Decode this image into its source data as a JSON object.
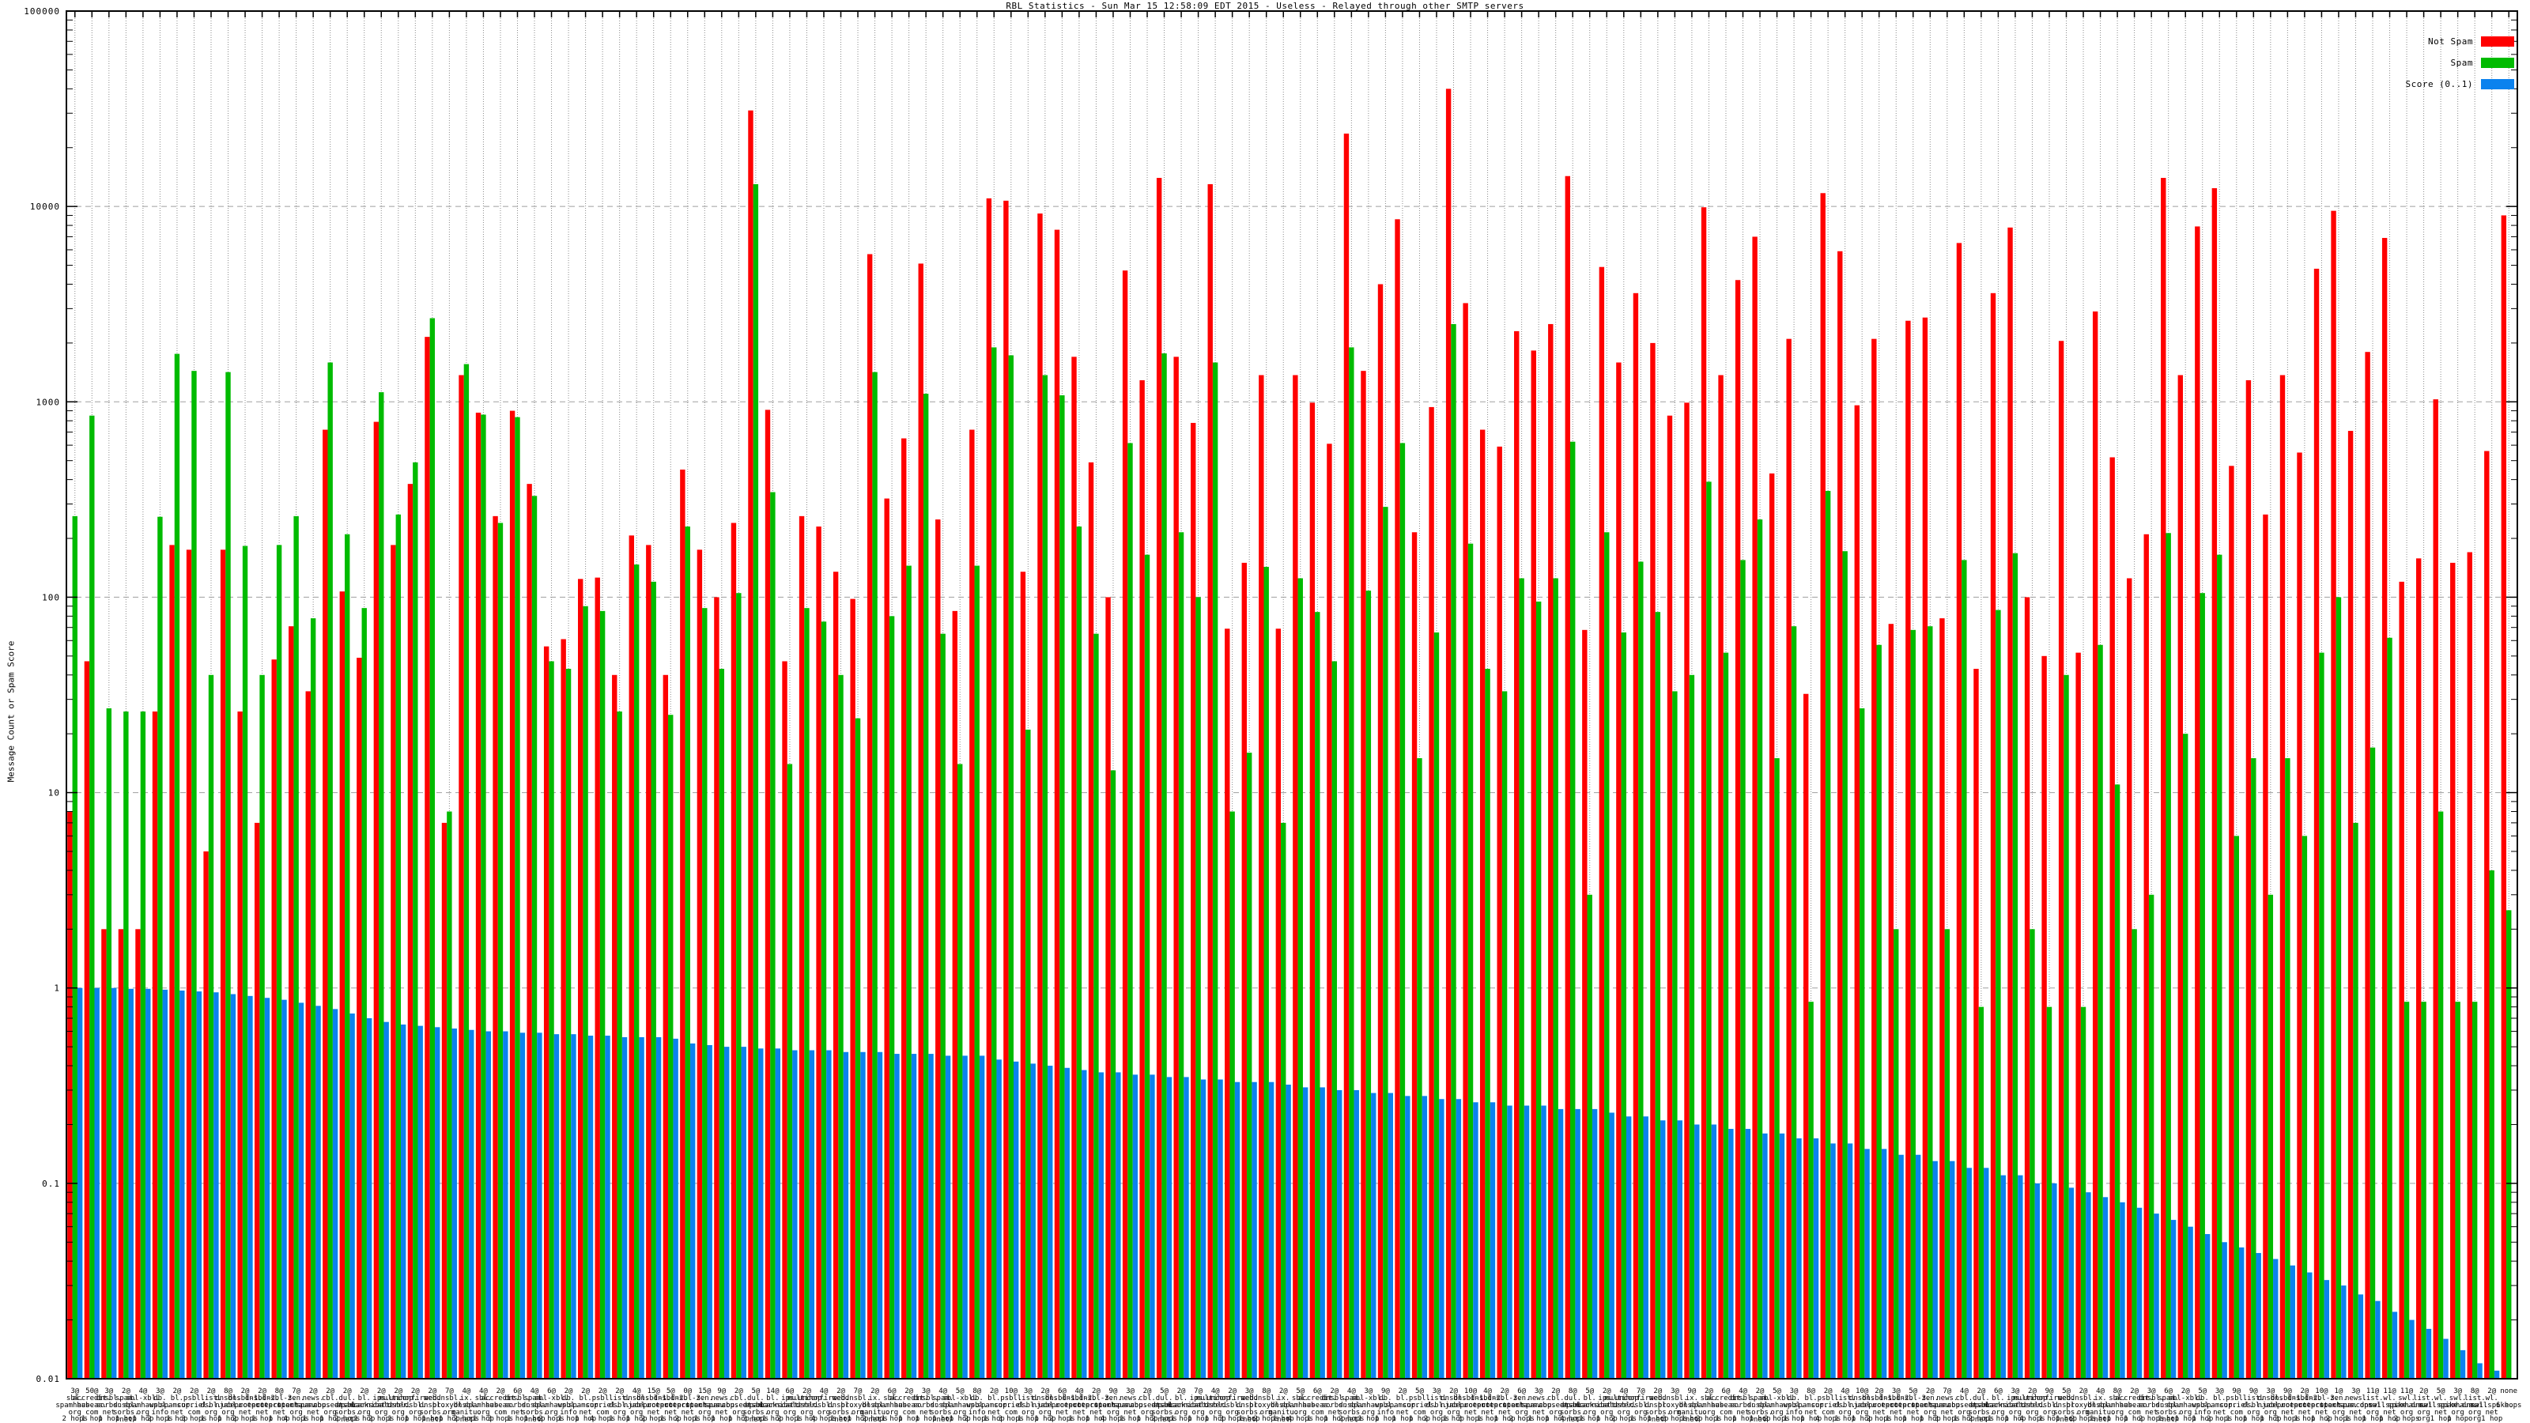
{
  "window": {
    "kind": "gnuplot-style statistics chart image"
  },
  "chart_data": {
    "type": "bar",
    "title": "RBL Statistics - Sun Mar 15 12:58:09 EDT 2015 - Useless - Relayed through other SMTP servers",
    "ylabel": "Message Count or Spam Score",
    "xlabel": "",
    "yscale": "log",
    "ylim": [
      0.01,
      100000
    ],
    "y_ticks": [
      "100000",
      "10000",
      "1000",
      "100",
      "10",
      "1",
      "0.1",
      "0.01"
    ],
    "grid": true,
    "legend_position": "top-right",
    "legend": [
      {
        "name": "Not Spam",
        "color": "#ff0000"
      },
      {
        "name": "Spam",
        "color": "#00bb00"
      },
      {
        "name": "Score (0..1)",
        "color": "#0b82ee"
      }
    ],
    "axis_color": "#000000",
    "vgrid_color": "#8a8a8a",
    "hgrid_color": "#9f9f9f",
    "group_fields": [
      "weight_tag",
      "rbl_name",
      "hops",
      "not_spam",
      "spam",
      "score"
    ],
    "groups": [
      [
        "3@",
        "sbl.spamhaus.org",
        "2 hops",
        8,
        260,
        1.0
      ],
      [
        "50@",
        "accredit.habeas.com",
        "1 hop",
        47,
        850,
        1.0
      ],
      [
        "3@",
        "dnsbl.sorbs.net",
        "1 hop",
        2,
        27,
        1.0
      ],
      [
        "2@",
        "spam.dnsbl.sorbs.net",
        "1 hop",
        2,
        26,
        0.99
      ],
      [
        "4@",
        "sbl-xbl.spamhaus.org",
        "1 hop",
        2,
        26,
        0.99
      ],
      [
        "3@",
        "db.wpbl.info",
        "2 hops",
        26,
        258,
        0.98
      ],
      [
        "2@",
        "bl.spamcop.net",
        "1 hop",
        185,
        1760,
        0.97
      ],
      [
        "2@",
        "psbl.surriel.com",
        "3 hops",
        175,
        1440,
        0.96
      ],
      [
        "2@",
        "list.dsbl.org",
        "1 hop",
        5,
        40,
        0.95
      ],
      [
        "8@",
        "dnsbl.njabl.org",
        "1 hop",
        175,
        1420,
        0.93
      ],
      [
        "2@",
        "dnsbl-1.uceprotect.net",
        "2 hops",
        26,
        183,
        0.91
      ],
      [
        "2@",
        "dnsbl-2.uceprotect.net",
        "1 hop",
        7,
        40,
        0.89
      ],
      [
        "8@",
        "dnsbl-3.uceprotect.net",
        "1 hop",
        48,
        185,
        0.87
      ],
      [
        "7@",
        "zen.spamhaus.org",
        "4 hops",
        71,
        260,
        0.84
      ],
      [
        "2@",
        "news.spamcop.net",
        "1 hop",
        33,
        78,
        0.81
      ],
      [
        "2@",
        "cbl.abuseat.org",
        "1 hop",
        720,
        1590,
        0.78
      ],
      [
        "2@",
        "dul.dnsbl.sorbs.net",
        "2 hops",
        107,
        210,
        0.74
      ],
      [
        "2@",
        "bl.spamcannibal.org",
        "1 hop",
        49,
        88,
        0.7
      ],
      [
        "2@",
        "ips.backscatterer.org",
        "2 hops",
        790,
        1120,
        0.67
      ],
      [
        "2@",
        "multihop.dsbl.org",
        "1 hop",
        185,
        265,
        0.65
      ],
      [
        "2@",
        "unconfirmed.dsbl.org",
        "1 hop",
        380,
        490,
        0.64
      ],
      [
        "2@",
        "web.dnsbl.sorbs.net",
        "1 hop",
        2150,
        2680,
        0.63
      ],
      [
        "7@",
        "dnsbl.proxybl.org",
        "1 hop",
        7,
        8,
        0.62
      ],
      [
        "4@",
        "ix.dnsbl.manitu.net",
        "2 hops",
        1370,
        1560,
        0.61
      ],
      [
        "4@",
        "sbl.spamhaus.org",
        "1 hop",
        880,
        860,
        0.6
      ],
      [
        "2@",
        "accredit.habeas.com",
        "3 hops",
        260,
        240,
        0.6
      ],
      [
        "6@",
        "dnsbl.sorbs.net",
        "1 hop",
        900,
        835,
        0.59
      ],
      [
        "4@",
        "spam.dnsbl.sorbs.net",
        "1 hop",
        380,
        330,
        0.59
      ],
      [
        "6@",
        "sbl-xbl.spamhaus.org",
        "2 hops",
        56,
        47,
        0.58
      ],
      [
        "2@",
        "db.wpbl.info",
        "1 hop",
        61,
        43,
        0.58
      ],
      [
        "2@",
        "bl.spamcop.net",
        "1 hop",
        124,
        90,
        0.57
      ],
      [
        "2@",
        "psbl.surriel.com",
        "4 hops",
        126,
        85,
        0.57
      ],
      [
        "2@",
        "list.dsbl.org",
        "1 hop",
        40,
        26,
        0.56
      ],
      [
        "4@",
        "dnsbl.njabl.org",
        "1 hop",
        207,
        147,
        0.56
      ],
      [
        "15@",
        "dnsbl-1.uceprotect.net",
        "2 hops",
        185,
        120,
        0.56
      ],
      [
        "5@",
        "dnsbl-2.uceprotect.net",
        "1 hop",
        40,
        25,
        0.55
      ],
      [
        "0@",
        "dnsbl-3.uceprotect.net",
        "2 hops",
        450,
        230,
        0.52
      ],
      [
        "15@",
        "zen.spamhaus.org",
        "1 hop",
        175,
        88,
        0.51
      ],
      [
        "9@",
        "news.spamcop.net",
        "1 hop",
        100,
        43,
        0.5
      ],
      [
        "2@",
        "cbl.abuseat.org",
        "1 hop",
        240,
        105,
        0.5
      ],
      [
        "5@",
        "dul.dnsbl.sorbs.net",
        "3 hops",
        31000,
        13000,
        0.49
      ],
      [
        "14@",
        "bl.spamcannibal.org",
        "1 hop",
        910,
        345,
        0.49
      ],
      [
        "6@",
        "ips.backscatterer.org",
        "2 hops",
        47,
        14,
        0.48
      ],
      [
        "2@",
        "multihop.dsbl.org",
        "1 hop",
        260,
        88,
        0.48
      ],
      [
        "4@",
        "unconfirmed.dsbl.org",
        "4 hops",
        230,
        75,
        0.48
      ],
      [
        "2@",
        "web.dnsbl.sorbs.net",
        "1 hop",
        135,
        40,
        0.47
      ],
      [
        "7@",
        "dnsbl.proxybl.org",
        "1 hop",
        98,
        24,
        0.47
      ],
      [
        "2@",
        "ix.dnsbl.manitu.net",
        "2 hops",
        5700,
        1420,
        0.47
      ],
      [
        "6@",
        "sbl.spamhaus.org",
        "1 hop",
        320,
        80,
        0.46
      ],
      [
        "2@",
        "accredit.habeas.com",
        "1 hop",
        650,
        145,
        0.46
      ],
      [
        "3@",
        "dnsbl.sorbs.net",
        "1 hop",
        5100,
        1100,
        0.46
      ],
      [
        "4@",
        "spam.dnsbl.sorbs.net",
        "1 hop",
        250,
        65,
        0.45
      ],
      [
        "5@",
        "sbl-xbl.spamhaus.org",
        "1 hop",
        85,
        14,
        0.45
      ],
      [
        "8@",
        "db.wpbl.info",
        "2 hops",
        720,
        145,
        0.45
      ],
      [
        "2@",
        "bl.spamcop.net",
        "1 hop",
        11000,
        1900,
        0.43
      ],
      [
        "10@",
        "psbl.surriel.com",
        "3 hops",
        10700,
        1730,
        0.42
      ],
      [
        "3@",
        "list.dsbl.org",
        "1 hop",
        135,
        21,
        0.41
      ],
      [
        "2@",
        "dnsbl.njabl.org",
        "1 hop",
        9200,
        1370,
        0.4
      ],
      [
        "6@",
        "dnsbl-1.uceprotect.net",
        "2 hops",
        7600,
        1080,
        0.39
      ],
      [
        "4@",
        "dnsbl-2.uceprotect.net",
        "1 hop",
        1700,
        230,
        0.38
      ],
      [
        "2@",
        "dnsbl-3.uceprotect.net",
        "1 hop",
        490,
        65,
        0.37
      ],
      [
        "9@",
        "zen.spamhaus.org",
        "4 hops",
        100,
        13,
        0.37
      ],
      [
        "3@",
        "news.spamcop.net",
        "1 hop",
        4700,
        615,
        0.36
      ],
      [
        "2@",
        "cbl.abuseat.org",
        "1 hop",
        1290,
        165,
        0.36
      ],
      [
        "5@",
        "dul.dnsbl.sorbs.net",
        "2 hops",
        14000,
        1770,
        0.35
      ],
      [
        "2@",
        "bl.spamcannibal.org",
        "1 hop",
        1700,
        215,
        0.35
      ],
      [
        "7@",
        "ips.backscatterer.org",
        "1 hop",
        780,
        100,
        0.34
      ],
      [
        "4@",
        "multihop.dsbl.org",
        "1 hop",
        13000,
        1590,
        0.34
      ],
      [
        "2@",
        "unconfirmed.dsbl.org",
        "3 hops",
        69,
        8,
        0.33
      ],
      [
        "3@",
        "web.dnsbl.sorbs.net",
        "1 hop",
        150,
        16,
        0.33
      ],
      [
        "8@",
        "dnsbl.proxybl.org",
        "2 hops",
        1370,
        143,
        0.33
      ],
      [
        "2@",
        "ix.dnsbl.manitu.net",
        "1 hop",
        69,
        7,
        0.32
      ],
      [
        "5@",
        "sbl.spamhaus.org",
        "4 hops",
        1370,
        125,
        0.31
      ],
      [
        "6@",
        "accredit.habeas.com",
        "1 hop",
        990,
        84,
        0.31
      ],
      [
        "2@",
        "dnsbl.sorbs.net",
        "1 hop",
        610,
        47,
        0.3
      ],
      [
        "4@",
        "spam.dnsbl.sorbs.net",
        "2 hops",
        23600,
        1900,
        0.3
      ],
      [
        "3@",
        "sbl-xbl.spamhaus.org",
        "1 hop",
        1440,
        108,
        0.29
      ],
      [
        "9@",
        "db.wpbl.info",
        "1 hop",
        4000,
        290,
        0.29
      ],
      [
        "2@",
        "bl.spamcop.net",
        "1 hop",
        8600,
        615,
        0.28
      ],
      [
        "5@",
        "psbl.surriel.com",
        "1 hop",
        215,
        15,
        0.28
      ],
      [
        "3@",
        "list.dsbl.org",
        "2 hops",
        940,
        66,
        0.27
      ],
      [
        "2@",
        "dnsbl.njabl.org",
        "1 hop",
        40000,
        2500,
        0.27
      ],
      [
        "10@",
        "dnsbl-1.uceprotect.net",
        "3 hops",
        3200,
        188,
        0.26
      ],
      [
        "4@",
        "dnsbl-2.uceprotect.net",
        "1 hop",
        720,
        43,
        0.26
      ],
      [
        "2@",
        "dnsbl-3.uceprotect.net",
        "1 hop",
        590,
        33,
        0.25
      ],
      [
        "6@",
        "zen.spamhaus.org",
        "2 hops",
        2300,
        125,
        0.25
      ],
      [
        "3@",
        "news.spamcop.net",
        "1 hop",
        1830,
        95,
        0.25
      ],
      [
        "2@",
        "cbl.abuseat.org",
        "1 hop",
        2500,
        125,
        0.24
      ],
      [
        "8@",
        "dul.dnsbl.sorbs.net",
        "4 hops",
        14300,
        625,
        0.24
      ],
      [
        "5@",
        "bl.spamcannibal.org",
        "1 hop",
        68,
        3,
        0.24
      ],
      [
        "2@",
        "ips.backscatterer.org",
        "1 hop",
        4900,
        215,
        0.23
      ],
      [
        "4@",
        "multihop.dsbl.org",
        "2 hops",
        1590,
        66,
        0.22
      ],
      [
        "7@",
        "unconfirmed.dsbl.org",
        "1 hop",
        3600,
        152,
        0.22
      ],
      [
        "2@",
        "web.dnsbl.sorbs.net",
        "1 hop",
        2000,
        84,
        0.21
      ],
      [
        "3@",
        "dnsbl.proxybl.org",
        "3 hops",
        850,
        33,
        0.21
      ],
      [
        "9@",
        "ix.dnsbl.manitu.net",
        "1 hop",
        990,
        40,
        0.2
      ],
      [
        "2@",
        "sbl.spamhaus.org",
        "2 hops",
        9900,
        390,
        0.2
      ],
      [
        "6@",
        "accredit.habeas.com",
        "1 hop",
        1370,
        52,
        0.19
      ],
      [
        "4@",
        "dnsbl.sorbs.net",
        "1 hop",
        4200,
        155,
        0.19
      ],
      [
        "2@",
        "spam.dnsbl.sorbs.net",
        "1 hop",
        7000,
        250,
        0.18
      ],
      [
        "5@",
        "sbl-xbl.spamhaus.org",
        "2 hops",
        430,
        15,
        0.18
      ],
      [
        "3@",
        "db.wpbl.info",
        "1 hop",
        2100,
        71,
        0.17
      ],
      [
        "8@",
        "bl.spamcop.net",
        "1 hop",
        32,
        0.85,
        0.17
      ],
      [
        "2@",
        "psbl.surriel.com",
        "4 hops",
        11700,
        350,
        0.16
      ],
      [
        "4@",
        "list.dsbl.org",
        "1 hop",
        5900,
        172,
        0.16
      ],
      [
        "10@",
        "dnsbl.njabl.org",
        "1 hop",
        960,
        27,
        0.15
      ],
      [
        "2@",
        "dnsbl-1.uceprotect.net",
        "2 hops",
        2100,
        57,
        0.15
      ],
      [
        "3@",
        "dnsbl-2.uceprotect.net",
        "1 hop",
        73,
        2,
        0.14
      ],
      [
        "5@",
        "dnsbl-3.uceprotect.net",
        "1 hop",
        2600,
        68,
        0.14
      ],
      [
        "2@",
        "zen.spamhaus.org",
        "1 hop",
        2700,
        71,
        0.13
      ],
      [
        "7@",
        "news.spamcop.net",
        "3 hops",
        78,
        2,
        0.13
      ],
      [
        "4@",
        "cbl.abuseat.org",
        "1 hop",
        6500,
        155,
        0.12
      ],
      [
        "2@",
        "dul.dnsbl.sorbs.net",
        "2 hops",
        43,
        0.8,
        0.12
      ],
      [
        "6@",
        "bl.spamcannibal.org",
        "1 hop",
        3600,
        86,
        0.11
      ],
      [
        "3@",
        "ips.backscatterer.org",
        "1 hop",
        7800,
        168,
        0.11
      ],
      [
        "2@",
        "multihop.dsbl.org",
        "4 hops",
        100,
        2,
        0.1
      ],
      [
        "9@",
        "unconfirmed.dsbl.org",
        "1 hop",
        50,
        0.8,
        0.1
      ],
      [
        "5@",
        "web.dnsbl.sorbs.net",
        "1 hop",
        2050,
        40,
        0.095
      ],
      [
        "2@",
        "dnsbl.proxybl.org",
        "2 hops",
        52,
        0.8,
        0.09
      ],
      [
        "4@",
        "ix.dnsbl.manitu.net",
        "1 hop",
        2900,
        57,
        0.085
      ],
      [
        "8@",
        "sbl.spamhaus.org",
        "1 hop",
        520,
        11,
        0.08
      ],
      [
        "2@",
        "accredit.habeas.com",
        "1 hop",
        125,
        2,
        0.075
      ],
      [
        "3@",
        "dnsbl.sorbs.net",
        "2 hops",
        210,
        3,
        0.07
      ],
      [
        "6@",
        "spam.dnsbl.sorbs.net",
        "1 hop",
        14000,
        213,
        0.065
      ],
      [
        "2@",
        "sbl-xbl.spamhaus.org",
        "1 hop",
        1370,
        20,
        0.06
      ],
      [
        "5@",
        "db.wpbl.info",
        "1 hop",
        7900,
        105,
        0.055
      ],
      [
        "3@",
        "bl.spamcop.net",
        "2 hops",
        12400,
        165,
        0.05
      ],
      [
        "9@",
        "psbl.surriel.com",
        "1 hop",
        470,
        6,
        0.047
      ],
      [
        "9@",
        "list.dsbl.org",
        "1 hop",
        1290,
        15,
        0.044
      ],
      [
        "3@",
        "dnsbl.njabl.org",
        "1 hop",
        265,
        3,
        0.041
      ],
      [
        "9@",
        "dnsbl-1.uceprotect.net",
        "3 hops",
        1370,
        15,
        0.038
      ],
      [
        "2@",
        "dnsbl-2.uceprotect.net",
        "1 hop",
        550,
        6,
        0.035
      ],
      [
        "10@",
        "dnsbl-3.uceprotect.net",
        "1 hop",
        4800,
        52,
        0.032
      ],
      [
        "1@",
        "zen.spamhaus.org",
        "2 hops",
        9500,
        100,
        0.03
      ],
      [
        "3@",
        "news.spamcop.net",
        "1 hop",
        710,
        7,
        0.027
      ],
      [
        "11@",
        "list.dnswl.org",
        "1 hop",
        1800,
        17,
        0.025
      ],
      [
        "11@",
        "wl.mailspike.net",
        "1 hop",
        6900,
        62,
        0.022
      ],
      [
        "11@",
        "swl.spamhaus.org",
        "2 hops",
        120,
        0.85,
        0.02
      ],
      [
        "2@",
        "list.dnswl.org",
        "org",
        158,
        0.85,
        0.018
      ],
      [
        "5@",
        "wl.mailspike.net",
        "1 hop",
        1030,
        8,
        0.016
      ],
      [
        "3@",
        "swl.spamhaus.org",
        "1 hop",
        150,
        0.85,
        0.014
      ],
      [
        "8@",
        "list.dnswl.org",
        "org",
        170,
        0.85,
        0.012
      ],
      [
        "2@",
        "wl.mailspike.net",
        "1 hop",
        560,
        4,
        0.011
      ],
      [
        "none",
        "",
        "6 hops",
        9000,
        2.5,
        0.01
      ]
    ]
  }
}
